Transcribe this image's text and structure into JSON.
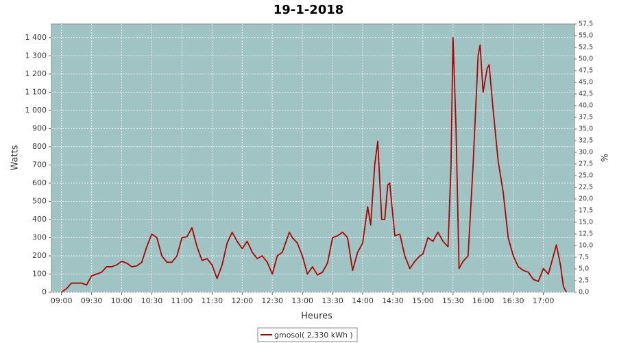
{
  "chart_data": {
    "type": "line",
    "title": "19-1-2018",
    "x_label": "Heures",
    "y_label": "Watts",
    "y2_label": "%",
    "x": [
      "09:00",
      "09:05",
      "09:10",
      "09:15",
      "09:20",
      "09:25",
      "09:30",
      "09:35",
      "09:40",
      "09:45",
      "09:50",
      "09:55",
      "10:00",
      "10:05",
      "10:10",
      "10:15",
      "10:20",
      "10:25",
      "10:30",
      "10:35",
      "10:40",
      "10:45",
      "10:50",
      "10:55",
      "11:00",
      "11:05",
      "11:10",
      "11:15",
      "11:20",
      "11:25",
      "11:30",
      "11:35",
      "11:40",
      "11:45",
      "11:50",
      "11:55",
      "12:00",
      "12:05",
      "12:10",
      "12:15",
      "12:20",
      "12:25",
      "12:30",
      "12:35",
      "12:40",
      "12:47",
      "12:50",
      "12:55",
      "13:00",
      "13:05",
      "13:10",
      "13:15",
      "13:20",
      "13:25",
      "13:30",
      "13:35",
      "13:40",
      "13:45",
      "13:50",
      "13:55",
      "14:00",
      "14:05",
      "14:08",
      "14:12",
      "14:15",
      "14:19",
      "14:22",
      "14:25",
      "14:27",
      "14:32",
      "14:37",
      "14:42",
      "14:47",
      "14:52",
      "14:57",
      "15:00",
      "15:05",
      "15:10",
      "15:15",
      "15:20",
      "15:25",
      "15:28",
      "15:30",
      "15:33",
      "15:36",
      "15:40",
      "15:45",
      "15:50",
      "15:55",
      "15:57",
      "16:00",
      "16:04",
      "16:06",
      "16:10",
      "16:15",
      "16:20",
      "16:25",
      "16:30",
      "16:35",
      "16:40",
      "16:45",
      "16:50",
      "16:55",
      "17:00",
      "17:05",
      "17:10",
      "17:13",
      "17:17",
      "17:20",
      "17:23"
    ],
    "series": [
      {
        "name": "gmosol( 2,330 kWh )",
        "color": "#b00000",
        "values": [
          0,
          20,
          50,
          50,
          50,
          40,
          90,
          100,
          110,
          140,
          140,
          150,
          170,
          160,
          140,
          145,
          165,
          250,
          320,
          300,
          200,
          165,
          165,
          200,
          300,
          305,
          355,
          250,
          175,
          185,
          150,
          75,
          150,
          270,
          330,
          280,
          240,
          280,
          220,
          185,
          200,
          165,
          100,
          200,
          220,
          330,
          300,
          270,
          200,
          100,
          140,
          95,
          110,
          160,
          300,
          310,
          330,
          300,
          120,
          220,
          270,
          470,
          370,
          700,
          830,
          400,
          400,
          590,
          600,
          310,
          320,
          200,
          130,
          170,
          200,
          210,
          300,
          280,
          330,
          280,
          250,
          700,
          1400,
          900,
          130,
          170,
          200,
          700,
          1300,
          1360,
          1100,
          1230,
          1250,
          1000,
          720,
          550,
          300,
          200,
          140,
          120,
          110,
          70,
          60,
          130,
          100,
          200,
          260,
          150,
          30,
          0
        ]
      }
    ],
    "xlim": [
      "08:50",
      "17:31"
    ],
    "xticks": [
      "09:00",
      "09:30",
      "10:00",
      "10:30",
      "11:00",
      "11:30",
      "12:00",
      "12:30",
      "13:00",
      "13:30",
      "14:00",
      "14:30",
      "15:00",
      "15:30",
      "16:00",
      "16:30",
      "17:00"
    ],
    "ylim": [
      0,
      1475
    ],
    "yticks": [
      0,
      100,
      200,
      300,
      400,
      500,
      600,
      700,
      800,
      900,
      {
        "value": 1000,
        "label": "1 000"
      },
      {
        "value": 1100,
        "label": "1 100"
      },
      {
        "value": 1200,
        "label": "1 200"
      },
      {
        "value": 1300,
        "label": "1 300"
      },
      {
        "value": 1400,
        "label": "1 400"
      }
    ],
    "y2lim": [
      0,
      57.5
    ],
    "y2ticks": [
      {
        "value": 0,
        "label": "0,0"
      },
      {
        "value": 2.5,
        "label": "2,5"
      },
      {
        "value": 5,
        "label": "5,0"
      },
      {
        "value": 7.5,
        "label": "7,5"
      },
      {
        "value": 10,
        "label": "10,0"
      },
      {
        "value": 12.5,
        "label": "12,5"
      },
      {
        "value": 15,
        "label": "15,0"
      },
      {
        "value": 17.5,
        "label": "17,5"
      },
      {
        "value": 20,
        "label": "20,0"
      },
      {
        "value": 22.5,
        "label": "22,5"
      },
      {
        "value": 25,
        "label": "25,0"
      },
      {
        "value": 27.5,
        "label": "27,5"
      },
      {
        "value": 30,
        "label": "30,0"
      },
      {
        "value": 32.5,
        "label": "32,5"
      },
      {
        "value": 35,
        "label": "35,0"
      },
      {
        "value": 37.5,
        "label": "37,5"
      },
      {
        "value": 40,
        "label": "40,0"
      },
      {
        "value": 42.5,
        "label": "42,5"
      },
      {
        "value": 45,
        "label": "45,0"
      },
      {
        "value": 47.5,
        "label": "47,5"
      },
      {
        "value": 50,
        "label": "50,0"
      },
      {
        "value": 52.5,
        "label": "52,5"
      },
      {
        "value": 55,
        "label": "55,0"
      },
      {
        "value": 57.5,
        "label": "57,5"
      }
    ],
    "grid": true,
    "background": "#a0c4c4"
  }
}
